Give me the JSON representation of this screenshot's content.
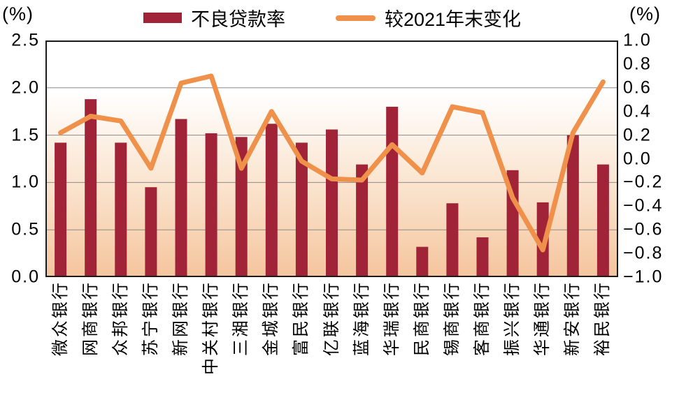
{
  "legend": [
    {
      "label": "不良贷款率",
      "type": "bar",
      "color": "#A02338"
    },
    {
      "label": "较2021年末变化",
      "type": "line",
      "color": "#F0914B"
    }
  ],
  "chart_data": {
    "type": "bar+line",
    "title": "",
    "categories": [
      "微众银行",
      "网商银行",
      "众邦银行",
      "苏宁银行",
      "新网银行",
      "中关村银行",
      "三湘银行",
      "金城银行",
      "富民银行",
      "亿联银行",
      "蓝海银行",
      "华瑞银行",
      "民商银行",
      "锡商银行",
      "客商银行",
      "振兴银行",
      "华通银行",
      "新安银行",
      "裕民银行"
    ],
    "series": [
      {
        "name": "不良贷款率",
        "type": "bar",
        "axis": "left",
        "color": "#A02338",
        "values": [
          1.42,
          1.88,
          1.42,
          0.95,
          1.67,
          1.52,
          1.48,
          1.62,
          1.42,
          1.56,
          1.19,
          1.8,
          0.32,
          0.78,
          0.42,
          1.13,
          0.79,
          1.5,
          1.19
        ]
      },
      {
        "name": "较2021年末变化",
        "type": "line",
        "axis": "right",
        "color": "#F0914B",
        "values": [
          0.22,
          0.36,
          0.32,
          -0.08,
          0.64,
          0.7,
          -0.08,
          0.4,
          -0.02,
          -0.17,
          -0.18,
          0.12,
          -0.12,
          0.44,
          0.39,
          -0.33,
          -0.77,
          0.22,
          0.65
        ]
      }
    ],
    "left_axis": {
      "unit": "(%)",
      "min": 0.0,
      "max": 2.5,
      "ticks": [
        "2.5",
        "2.0",
        "1.5",
        "1.0",
        "0.5",
        "0.0"
      ]
    },
    "right_axis": {
      "unit": "(%)",
      "min": -1.0,
      "max": 1.0,
      "ticks": [
        "1.0",
        "0.8",
        "0.6",
        "0.4",
        "0.2",
        "0.0",
        "−0.2",
        "−0.4",
        "−0.6",
        "−0.8",
        "−1.0"
      ]
    },
    "grid": true,
    "legend_position": "top",
    "plot_colors": {
      "background_top": "#FFFFFF",
      "background_mid": "#FAE3CD",
      "background_bottom": "#F5C59D",
      "gridline": "#8C8C8C",
      "border": "#1A1A1A"
    }
  }
}
